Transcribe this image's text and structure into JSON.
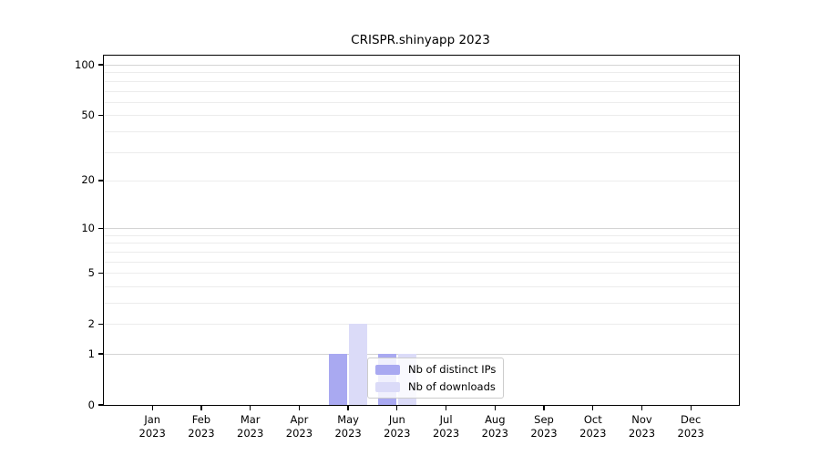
{
  "title": "CRISPR.shinyapp 2023",
  "chart_data": {
    "type": "bar",
    "title": "CRISPR.shinyapp 2023",
    "categories": [
      "Jan 2023",
      "Feb 2023",
      "Mar 2023",
      "Apr 2023",
      "May 2023",
      "Jun 2023",
      "Jul 2023",
      "Aug 2023",
      "Sep 2023",
      "Oct 2023",
      "Nov 2023",
      "Dec 2023"
    ],
    "series": [
      {
        "name": "Nb of distinct IPs",
        "color": "#a9a9f1",
        "values": [
          0,
          0,
          0,
          0,
          1,
          1,
          0,
          0,
          0,
          0,
          0,
          0
        ]
      },
      {
        "name": "Nb of downloads",
        "color": "#dbdbf8",
        "values": [
          0,
          0,
          0,
          0,
          2,
          1,
          0,
          0,
          0,
          0,
          0,
          0
        ]
      }
    ],
    "xlabel": "",
    "ylabel": "",
    "yscale": "log1p",
    "ylim": [
      0,
      113
    ],
    "ytick_values": [
      0,
      1,
      2,
      5,
      10,
      20,
      50,
      100
    ],
    "grid": "horizontal",
    "grid_major_values": [
      1,
      10,
      100
    ],
    "grid_minor_values": [
      2,
      3,
      4,
      5,
      6,
      7,
      8,
      9,
      20,
      30,
      40,
      50,
      60,
      70,
      80,
      90
    ],
    "legend_position": "inset-bottom-center",
    "colors": {
      "grid_major": "#d4d4d4",
      "grid_minor": "#ececec",
      "axis": "#000000",
      "legend_border": "#cccccc"
    }
  }
}
